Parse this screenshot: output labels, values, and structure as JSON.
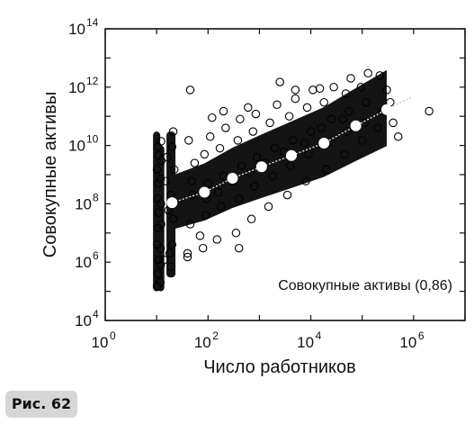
{
  "figure_caption": "Рис. 62",
  "chart_data": {
    "type": "scatter",
    "title": "",
    "xlabel": "Число работников",
    "ylabel": "Совокупные активы",
    "xscale": "log",
    "yscale": "log",
    "xlim": [
      1,
      10000000
    ],
    "ylim": [
      10000,
      100000000000000
    ],
    "x_ticks": [
      {
        "base": "10",
        "exp": "0",
        "value": 1
      },
      {
        "base": "10",
        "exp": "2",
        "value": 100
      },
      {
        "base": "10",
        "exp": "4",
        "value": 10000
      },
      {
        "base": "10",
        "exp": "6",
        "value": 1000000
      }
    ],
    "y_ticks": [
      {
        "base": "10",
        "exp": "4",
        "value": 10000
      },
      {
        "base": "10",
        "exp": "6",
        "value": 1000000
      },
      {
        "base": "10",
        "exp": "8",
        "value": 100000000
      },
      {
        "base": "10",
        "exp": "10",
        "value": 10000000000
      },
      {
        "base": "10",
        "exp": "12",
        "value": 1000000000000
      },
      {
        "base": "10",
        "exp": "14",
        "value": 100000000000000
      }
    ],
    "annotation": "Совокупные активы (0,86)",
    "grid": false,
    "series": [
      {
        "marker": "open-circle",
        "color": "#000000",
        "trend": {
          "x": [
            20,
            85,
            300,
            1100,
            4200,
            18000,
            75000,
            300000
          ],
          "y": [
            110000000,
            250000000,
            750000000,
            1850000000,
            4500000000,
            12000000000,
            47000000000,
            170000000000
          ]
        },
        "points": [
          [
            10.2,
            150000
          ],
          [
            10.5,
            400000
          ],
          [
            10.8,
            1200000
          ],
          [
            10.3,
            4000000
          ],
          [
            10.6,
            15000000
          ],
          [
            10.9,
            50000000
          ],
          [
            10.4,
            150000000
          ],
          [
            10.7,
            500000000
          ],
          [
            10.2,
            1500000000
          ],
          [
            10.8,
            4500000000
          ],
          [
            10.5,
            9000000000
          ],
          [
            11.8,
            200000
          ],
          [
            12.0,
            800000
          ],
          [
            11.9,
            3000000
          ],
          [
            12.2,
            20000000
          ],
          [
            12.1,
            100000000
          ],
          [
            11.9,
            700000000
          ],
          [
            12.3,
            3000000000
          ],
          [
            12.2,
            14000000000
          ],
          [
            19,
            700000
          ],
          [
            20,
            4000000
          ],
          [
            21,
            30000000
          ],
          [
            19,
            200000000
          ],
          [
            22,
            1500000000
          ],
          [
            20,
            9000000000
          ],
          [
            21,
            30000000000
          ],
          [
            14,
            1200000
          ],
          [
            15,
            600000000
          ],
          [
            16,
            4000000000
          ],
          [
            17,
            60000000
          ],
          [
            18,
            2000000
          ],
          [
            40,
            1500000
          ],
          [
            45,
            20000000
          ],
          [
            50,
            200000000
          ],
          [
            55,
            2500000000
          ],
          [
            42,
            15000000000
          ],
          [
            48,
            600000000
          ],
          [
            80,
            3000000
          ],
          [
            90,
            40000000
          ],
          [
            100,
            500000000
          ],
          [
            85,
            5000000000
          ],
          [
            110,
            20000000000
          ],
          [
            95,
            150000000
          ],
          [
            150,
            6000000
          ],
          [
            180,
            80000000
          ],
          [
            200,
            900000000
          ],
          [
            170,
            8000000000
          ],
          [
            220,
            40000000000
          ],
          [
            160,
            250000000
          ],
          [
            350,
            10000000
          ],
          [
            400,
            150000000
          ],
          [
            450,
            2000000000
          ],
          [
            380,
            15000000000
          ],
          [
            420,
            80000000000
          ],
          [
            300,
            600000000
          ],
          [
            700,
            30000000
          ],
          [
            800,
            400000000
          ],
          [
            900,
            4000000000
          ],
          [
            750,
            30000000000
          ],
          [
            850,
            120000000000
          ],
          [
            650,
            1200000000
          ],
          [
            1500,
            80000000
          ],
          [
            1800,
            900000000
          ],
          [
            2000,
            8000000000
          ],
          [
            1600,
            60000000000
          ],
          [
            2200,
            250000000000
          ],
          [
            1300,
            2500000000
          ],
          [
            3500,
            200000000
          ],
          [
            4000,
            2000000000
          ],
          [
            4500,
            15000000000
          ],
          [
            3800,
            100000000000
          ],
          [
            5000,
            400000000000
          ],
          [
            3000,
            6000000000
          ],
          [
            8000,
            600000000
          ],
          [
            9000,
            5000000000
          ],
          [
            10000,
            30000000000
          ],
          [
            8500,
            200000000000
          ],
          [
            11000,
            800000000000
          ],
          [
            7500,
            12000000000
          ],
          [
            20000,
            1500000000
          ],
          [
            22000,
            12000000000
          ],
          [
            25000,
            80000000000
          ],
          [
            18000,
            300000000000
          ],
          [
            28000,
            1000000000000
          ],
          [
            16000,
            40000000000
          ],
          [
            45000,
            5000000000
          ],
          [
            50000,
            30000000000
          ],
          [
            55000,
            150000000000
          ],
          [
            48000,
            600000000000
          ],
          [
            60000,
            2000000000000
          ],
          [
            42000,
            80000000000
          ],
          [
            100000,
            15000000000
          ],
          [
            110000,
            60000000000
          ],
          [
            120000,
            300000000000
          ],
          [
            95000,
            1000000000000
          ],
          [
            130000,
            3000000000000
          ],
          [
            200000,
            40000000000
          ],
          [
            250000,
            150000000000
          ],
          [
            300000,
            800000000000
          ],
          [
            220000,
            2500000000000
          ],
          [
            350000,
            300000000000
          ],
          [
            400000,
            60000000000
          ],
          [
            500000,
            20000000000
          ],
          [
            2000000,
            150000000000
          ],
          [
            45,
            800000000000
          ],
          [
            200,
            150000000000
          ],
          [
            120,
            90000000000
          ],
          [
            600,
            200000000000
          ],
          [
            5000,
            800000000000
          ],
          [
            40,
            2000000
          ],
          [
            70,
            8000000
          ],
          [
            2500,
            1500000000000
          ],
          [
            15000,
            900000000000
          ],
          [
            400,
            3000000
          ]
        ]
      }
    ]
  }
}
